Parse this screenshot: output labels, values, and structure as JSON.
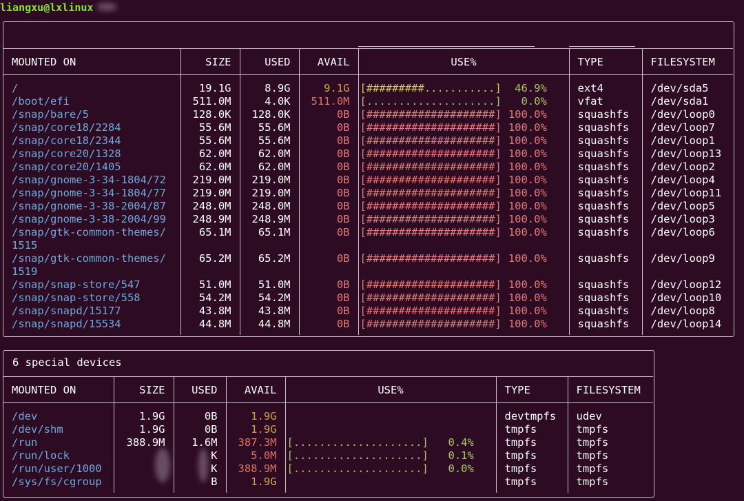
{
  "prompt": "liangxu@lxlinux",
  "headers": [
    "MOUNTED ON",
    "SIZE",
    "USED",
    "AVAIL",
    "USE%",
    "TYPE",
    "FILESYSTEM"
  ],
  "local_devices": [
    {
      "mount": "/",
      "size": "19.1G",
      "used": "8.9G",
      "avail": "9.1G",
      "bar": "[#########...........]",
      "pct": "46.9%",
      "type": "ext4",
      "fs": "/dev/sda5",
      "status": "partial"
    },
    {
      "mount": "/boot/efi",
      "size": "511.0M",
      "used": "4.0K",
      "avail": "511.0M",
      "bar": "[....................]",
      "pct": "0.0%",
      "type": "vfat",
      "fs": "/dev/sda1",
      "status": "empty"
    },
    {
      "mount": "/snap/bare/5",
      "size": "128.0K",
      "used": "128.0K",
      "avail": "0B",
      "bar": "[####################]",
      "pct": "100.0%",
      "type": "squashfs",
      "fs": "/dev/loop0",
      "status": "full"
    },
    {
      "mount": "/snap/core18/2284",
      "size": "55.6M",
      "used": "55.6M",
      "avail": "0B",
      "bar": "[####################]",
      "pct": "100.0%",
      "type": "squashfs",
      "fs": "/dev/loop7",
      "status": "full"
    },
    {
      "mount": "/snap/core18/2344",
      "size": "55.6M",
      "used": "55.6M",
      "avail": "0B",
      "bar": "[####################]",
      "pct": "100.0%",
      "type": "squashfs",
      "fs": "/dev/loop1",
      "status": "full"
    },
    {
      "mount": "/snap/core20/1328",
      "size": "62.0M",
      "used": "62.0M",
      "avail": "0B",
      "bar": "[####################]",
      "pct": "100.0%",
      "type": "squashfs",
      "fs": "/dev/loop13",
      "status": "full"
    },
    {
      "mount": "/snap/core20/1405",
      "size": "62.0M",
      "used": "62.0M",
      "avail": "0B",
      "bar": "[####################]",
      "pct": "100.0%",
      "type": "squashfs",
      "fs": "/dev/loop2",
      "status": "full"
    },
    {
      "mount": "/snap/gnome-3-34-1804/72",
      "size": "219.0M",
      "used": "219.0M",
      "avail": "0B",
      "bar": "[####################]",
      "pct": "100.0%",
      "type": "squashfs",
      "fs": "/dev/loop4",
      "status": "full"
    },
    {
      "mount": "/snap/gnome-3-34-1804/77",
      "size": "219.0M",
      "used": "219.0M",
      "avail": "0B",
      "bar": "[####################]",
      "pct": "100.0%",
      "type": "squashfs",
      "fs": "/dev/loop11",
      "status": "full"
    },
    {
      "mount": "/snap/gnome-3-38-2004/87",
      "size": "248.0M",
      "used": "248.0M",
      "avail": "0B",
      "bar": "[####################]",
      "pct": "100.0%",
      "type": "squashfs",
      "fs": "/dev/loop5",
      "status": "full"
    },
    {
      "mount": "/snap/gnome-3-38-2004/99",
      "size": "248.9M",
      "used": "248.9M",
      "avail": "0B",
      "bar": "[####################]",
      "pct": "100.0%",
      "type": "squashfs",
      "fs": "/dev/loop3",
      "status": "full"
    },
    {
      "mount": "/snap/gtk-common-themes/",
      "mount2": "1515",
      "size": "65.1M",
      "used": "65.1M",
      "avail": "0B",
      "bar": "[####################]",
      "pct": "100.0%",
      "type": "squashfs",
      "fs": "/dev/loop6",
      "status": "full"
    },
    {
      "mount": "/snap/gtk-common-themes/",
      "mount2": "1519",
      "size": "65.2M",
      "used": "65.2M",
      "avail": "0B",
      "bar": "[####################]",
      "pct": "100.0%",
      "type": "squashfs",
      "fs": "/dev/loop9",
      "status": "full"
    },
    {
      "mount": "/snap/snap-store/547",
      "size": "51.0M",
      "used": "51.0M",
      "avail": "0B",
      "bar": "[####################]",
      "pct": "100.0%",
      "type": "squashfs",
      "fs": "/dev/loop12",
      "status": "full"
    },
    {
      "mount": "/snap/snap-store/558",
      "size": "54.2M",
      "used": "54.2M",
      "avail": "0B",
      "bar": "[####################]",
      "pct": "100.0%",
      "type": "squashfs",
      "fs": "/dev/loop10",
      "status": "full"
    },
    {
      "mount": "/snap/snapd/15177",
      "size": "43.8M",
      "used": "43.8M",
      "avail": "0B",
      "bar": "[####################]",
      "pct": "100.0%",
      "type": "squashfs",
      "fs": "/dev/loop8",
      "status": "full"
    },
    {
      "mount": "/snap/snapd/15534",
      "size": "44.8M",
      "used": "44.8M",
      "avail": "0B",
      "bar": "[####################]",
      "pct": "100.0%",
      "type": "squashfs",
      "fs": "/dev/loop14",
      "status": "full"
    }
  ],
  "special_title": "6 special devices",
  "special_devices": [
    {
      "mount": "/dev",
      "size": "1.9G",
      "used": "0B",
      "avail": "1.9G",
      "bar": "",
      "pct": "",
      "type": "devtmpfs",
      "fs": "udev",
      "status": "none"
    },
    {
      "mount": "/dev/shm",
      "size": "1.9G",
      "used": "0B",
      "avail": "1.9G",
      "bar": "",
      "pct": "",
      "type": "tmpfs",
      "fs": "tmpfs",
      "status": "none"
    },
    {
      "mount": "/run",
      "size": "388.9M",
      "used": "1.6M",
      "avail": "387.3M",
      "bar": "[....................]",
      "pct": "0.4%",
      "type": "tmpfs",
      "fs": "tmpfs",
      "status": "empty"
    },
    {
      "mount": "/run/lock",
      "size": "",
      "used": "K",
      "avail": "5.0M",
      "bar": "[....................]",
      "pct": "0.1%",
      "type": "tmpfs",
      "fs": "tmpfs",
      "status": "empty"
    },
    {
      "mount": "/run/user/1000",
      "size": "",
      "used": "K",
      "avail": "388.9M",
      "bar": "[....................]",
      "pct": "0.0%",
      "type": "tmpfs",
      "fs": "tmpfs",
      "status": "empty"
    },
    {
      "mount": "/sys/fs/cgroup",
      "size": "",
      "used": "B",
      "avail": "1.9G",
      "bar": "",
      "pct": "",
      "type": "tmpfs",
      "fs": "tmpfs",
      "status": "none"
    }
  ],
  "colors": {
    "background": "#2d0b22",
    "mount": "#6fa8dc",
    "full": "#e37a7a",
    "ok": "#a8c66a",
    "warn": "#d3a44a"
  }
}
